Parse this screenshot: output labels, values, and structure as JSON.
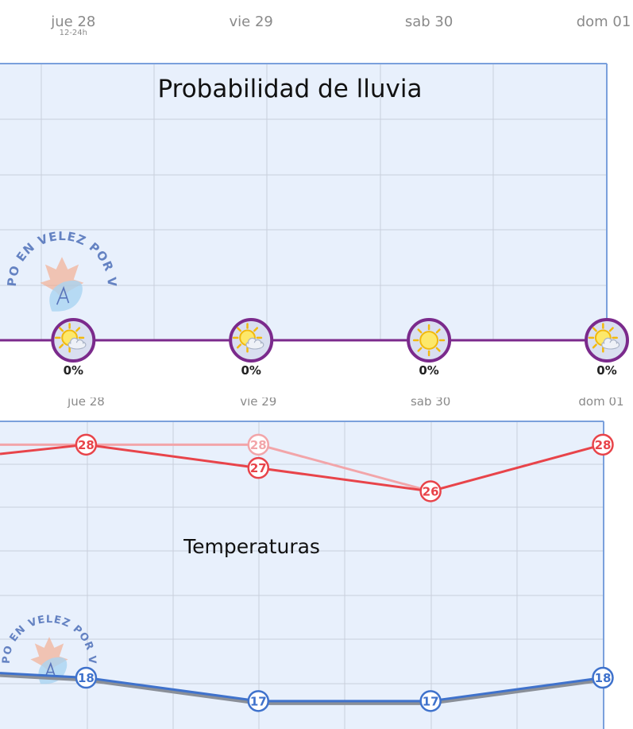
{
  "colors": {
    "plot_bg": "#e8f0fc",
    "plot_border": "#7aa0dc",
    "grid": "#c9cfdc",
    "rain_line": "#7b2a8c",
    "temp_max": "#e8444a",
    "temp_max_faded": "#f2a5a9",
    "temp_min": "#3f72cc",
    "temp_min_shadow": "#8a8f98",
    "axis_text": "#8a8a8a",
    "title_text": "#111111",
    "watermark": "#4d6fb8"
  },
  "watermark_text": "EL TIEMPO EN VELEZ POR VELEÑOS",
  "chart_data": [
    {
      "type": "line",
      "title": "Probabilidad de lluvia",
      "x_unit": "day",
      "categories": [
        "jue 28",
        "vie 29",
        "sab 30",
        "dom 01"
      ],
      "category_sublabels": [
        "12-24h",
        "",
        "",
        ""
      ],
      "x": [
        0,
        1,
        2,
        3
      ],
      "xlim": [
        -0.18,
        3.0
      ],
      "series": [
        {
          "values": [
            0,
            0,
            0,
            0
          ],
          "value_labels": [
            "0%",
            "0%",
            "0%",
            "0%"
          ],
          "icons": [
            "sun-cloud-icon",
            "sun-cloud-icon",
            "sun-icon",
            "sun-cloud-icon"
          ]
        }
      ],
      "ylim": [
        0,
        100
      ],
      "grid": true
    },
    {
      "type": "line",
      "title": "Temperaturas",
      "x_unit": "day",
      "categories": [
        "jue 28",
        "vie 29",
        "sab 30",
        "dom 01"
      ],
      "x": [
        0,
        1,
        2,
        3
      ],
      "xlim": [
        -0.5,
        3.0
      ],
      "series": [
        {
          "role": "max",
          "x": [
            -0.5,
            0,
            1,
            2,
            3
          ],
          "values": [
            27.6,
            28,
            27,
            26,
            28
          ],
          "labels": [
            null,
            "28",
            "27",
            "26",
            "28"
          ]
        },
        {
          "role": "max-faded",
          "x": [
            -0.5,
            0,
            1,
            2
          ],
          "values": [
            28,
            28,
            28,
            26
          ],
          "labels": [
            null,
            null,
            "28",
            null
          ]
        },
        {
          "role": "min",
          "x": [
            -0.5,
            0,
            1,
            2,
            3
          ],
          "values": [
            18.2,
            18,
            17,
            17,
            18
          ],
          "labels": [
            null,
            "18",
            "17",
            "17",
            "18"
          ]
        }
      ],
      "ylim": [
        15.8,
        29
      ],
      "grid": true
    }
  ]
}
